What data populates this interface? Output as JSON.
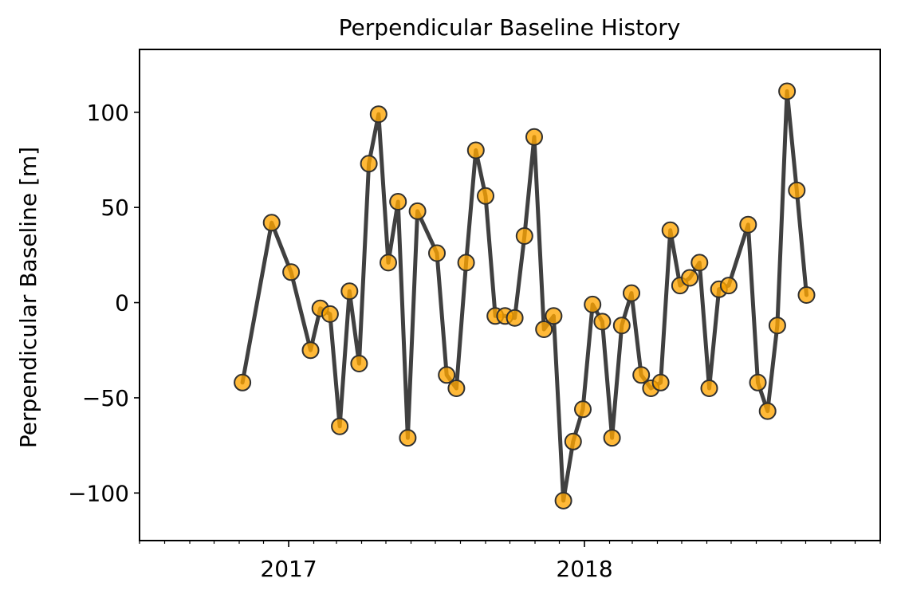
{
  "chart_data": {
    "type": "line",
    "title": "Perpendicular Baseline History",
    "xlabel": "",
    "ylabel": "Perpendicular Baseline [m]",
    "x_axis": {
      "type": "date",
      "range": [
        "2016-07-01",
        "2019-01-01"
      ],
      "tick_labels": [
        "2017",
        "2018"
      ],
      "tick_dates": [
        "2017-01-01",
        "2018-01-01"
      ]
    },
    "y_axis": {
      "range": [
        -125,
        133
      ],
      "ticks": [
        100,
        50,
        0,
        -50,
        -100
      ],
      "tick_labels": [
        "100",
        "50",
        "0",
        "−50",
        "−100"
      ]
    },
    "grid": false,
    "line_color": "#404040",
    "marker_color": "#ffa500",
    "marker_edge_color": "#303030",
    "series": [
      {
        "points": [
          {
            "x": "2016-11-05",
            "y": -42
          },
          {
            "x": "2016-12-11",
            "y": 42
          },
          {
            "x": "2017-01-04",
            "y": 16
          },
          {
            "x": "2017-01-28",
            "y": -25
          },
          {
            "x": "2017-02-09",
            "y": -3
          },
          {
            "x": "2017-02-21",
            "y": -6
          },
          {
            "x": "2017-03-05",
            "y": -65
          },
          {
            "x": "2017-03-17",
            "y": 6
          },
          {
            "x": "2017-03-29",
            "y": -32
          },
          {
            "x": "2017-04-10",
            "y": 73
          },
          {
            "x": "2017-04-22",
            "y": 99
          },
          {
            "x": "2017-05-04",
            "y": 21
          },
          {
            "x": "2017-05-16",
            "y": 53
          },
          {
            "x": "2017-05-28",
            "y": -71
          },
          {
            "x": "2017-06-09",
            "y": 48
          },
          {
            "x": "2017-07-03",
            "y": 26
          },
          {
            "x": "2017-07-15",
            "y": -38
          },
          {
            "x": "2017-07-27",
            "y": -45
          },
          {
            "x": "2017-08-08",
            "y": 21
          },
          {
            "x": "2017-08-20",
            "y": 80
          },
          {
            "x": "2017-09-01",
            "y": 56
          },
          {
            "x": "2017-09-13",
            "y": -7
          },
          {
            "x": "2017-09-25",
            "y": -7
          },
          {
            "x": "2017-10-07",
            "y": -8
          },
          {
            "x": "2017-10-19",
            "y": 35
          },
          {
            "x": "2017-10-31",
            "y": 87
          },
          {
            "x": "2017-11-12",
            "y": -14
          },
          {
            "x": "2017-11-24",
            "y": -7
          },
          {
            "x": "2017-12-06",
            "y": -104
          },
          {
            "x": "2017-12-18",
            "y": -73
          },
          {
            "x": "2017-12-30",
            "y": -56
          },
          {
            "x": "2018-01-11",
            "y": -1
          },
          {
            "x": "2018-01-23",
            "y": -10
          },
          {
            "x": "2018-02-04",
            "y": -71
          },
          {
            "x": "2018-02-16",
            "y": -12
          },
          {
            "x": "2018-02-28",
            "y": 5
          },
          {
            "x": "2018-03-12",
            "y": -38
          },
          {
            "x": "2018-03-24",
            "y": -45
          },
          {
            "x": "2018-04-05",
            "y": -42
          },
          {
            "x": "2018-04-17",
            "y": 38
          },
          {
            "x": "2018-04-29",
            "y": 9
          },
          {
            "x": "2018-05-11",
            "y": 13
          },
          {
            "x": "2018-05-23",
            "y": 21
          },
          {
            "x": "2018-06-04",
            "y": -45
          },
          {
            "x": "2018-06-16",
            "y": 7
          },
          {
            "x": "2018-06-28",
            "y": 9
          },
          {
            "x": "2018-07-22",
            "y": 41
          },
          {
            "x": "2018-08-03",
            "y": -42
          },
          {
            "x": "2018-08-15",
            "y": -57
          },
          {
            "x": "2018-08-27",
            "y": -12
          },
          {
            "x": "2018-09-08",
            "y": 111
          },
          {
            "x": "2018-09-20",
            "y": 59
          },
          {
            "x": "2018-10-02",
            "y": 4
          }
        ]
      }
    ]
  }
}
